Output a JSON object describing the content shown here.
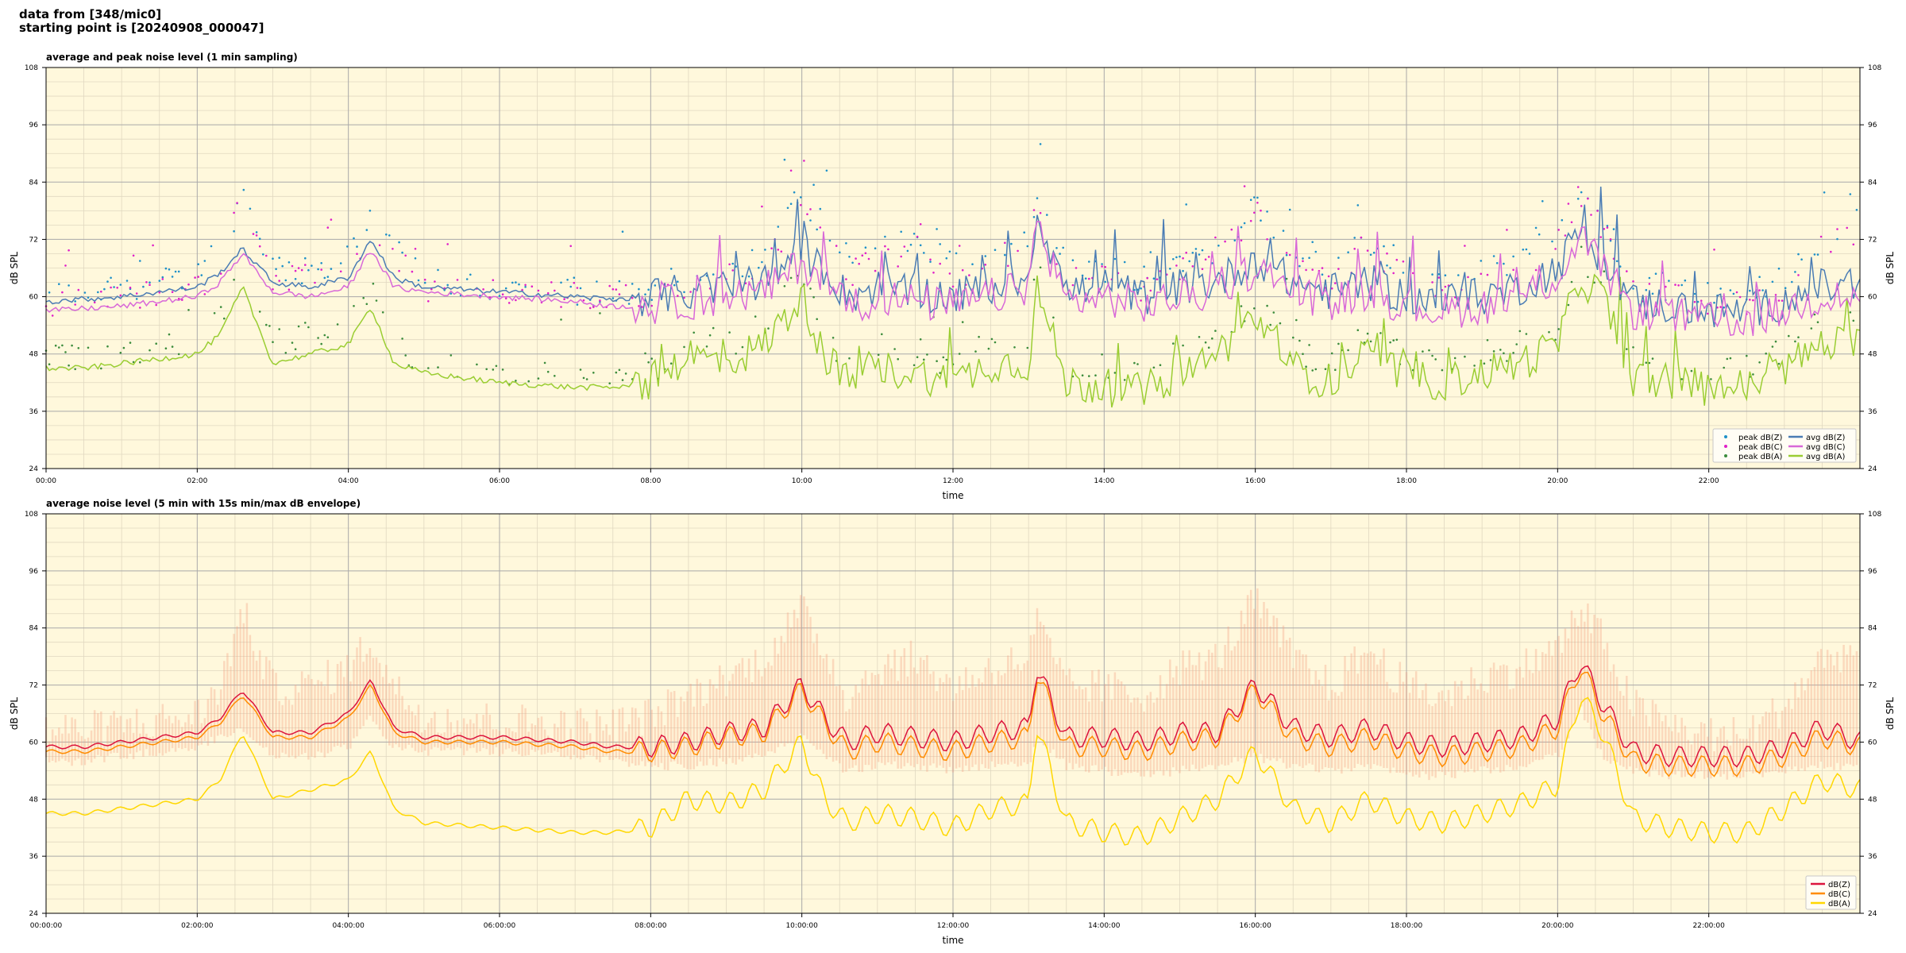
{
  "header": {
    "line1": "data from [348/mic0]",
    "line2": "starting point is [20240908_000047]"
  },
  "colors": {
    "background": "#fff8dc",
    "grid_major": "#a9a9a9",
    "grid_minor": "#e0d8c0",
    "peak_z": "#1e90c8",
    "peak_c": "#e020c8",
    "peak_a": "#3c8c3c",
    "avg_z": "#4a7cb4",
    "avg_c": "#d868d8",
    "avg_a": "#9acd32",
    "db_z": "#dc143c",
    "db_c": "#ff8c00",
    "db_a": "#ffd700",
    "envelope": "#f4a080"
  },
  "chart_data": [
    {
      "type": "line",
      "title": "average and peak noise level (1 min sampling)",
      "xlabel": "time",
      "ylabel": "dB SPL",
      "ylabel_right": "dB SPL",
      "xlim_hours": [
        0,
        24
      ],
      "ylim": [
        24,
        108
      ],
      "yticks": [
        24,
        36,
        48,
        60,
        72,
        84,
        96,
        108
      ],
      "xtick_hours": [
        0,
        2,
        4,
        6,
        8,
        10,
        12,
        14,
        16,
        18,
        20,
        22
      ],
      "xtick_labels": [
        "00:00",
        "02:00",
        "04:00",
        "06:00",
        "08:00",
        "10:00",
        "12:00",
        "14:00",
        "16:00",
        "18:00",
        "20:00",
        "22:00"
      ],
      "grid": true,
      "legend_position": "bottom-right",
      "series": [
        {
          "name": "peak dB(Z)",
          "kind": "scatter",
          "color_key": "peak_z"
        },
        {
          "name": "peak dB(C)",
          "kind": "scatter",
          "color_key": "peak_c"
        },
        {
          "name": "peak dB(A)",
          "kind": "scatter",
          "color_key": "peak_a"
        },
        {
          "name": "avg dB(Z)",
          "kind": "line",
          "color_key": "avg_z"
        },
        {
          "name": "avg dB(C)",
          "kind": "line",
          "color_key": "avg_c"
        },
        {
          "name": "avg dB(A)",
          "kind": "line",
          "color_key": "avg_a"
        }
      ],
      "x_hours": [
        0,
        0.5,
        1,
        1.5,
        2,
        2.3,
        2.6,
        3,
        3.5,
        4,
        4.3,
        4.6,
        5,
        6,
        7,
        7.5,
        8,
        8.5,
        9,
        9.5,
        10,
        10.3,
        10.6,
        11,
        11.5,
        12,
        12.5,
        13,
        13.1,
        13.5,
        14,
        14.5,
        15,
        15.5,
        16,
        16.5,
        17,
        17.5,
        18,
        18.5,
        19,
        19.5,
        20,
        20.3,
        20.6,
        21,
        21.5,
        22,
        22.5,
        23,
        23.5,
        24
      ],
      "avg_z": [
        59,
        59.5,
        60,
        61,
        62,
        65,
        70,
        63,
        62,
        64,
        72,
        64,
        62,
        61,
        60,
        59.5,
        60,
        61,
        62,
        63,
        69,
        66,
        60,
        62,
        61,
        60,
        62,
        64,
        78,
        61,
        62,
        60,
        62,
        63,
        68,
        63,
        61,
        63,
        60,
        59,
        60,
        62,
        66,
        74,
        68,
        59,
        58,
        57,
        57,
        59,
        62,
        62
      ],
      "avg_c": [
        57,
        57.5,
        58,
        59,
        60,
        63,
        69,
        61,
        60,
        62,
        70,
        62,
        61,
        60,
        59,
        58,
        58,
        59,
        60,
        61,
        67,
        64,
        58,
        60,
        59,
        58,
        60,
        62,
        76,
        59,
        60,
        58,
        60,
        61,
        66,
        61,
        59,
        61,
        58,
        57,
        58,
        60,
        64,
        72,
        66,
        57,
        56,
        55,
        55,
        57,
        60,
        60
      ],
      "avg_a": [
        45,
        45,
        46,
        47,
        48,
        52,
        62,
        46,
        48,
        50,
        58,
        46,
        44,
        42,
        41,
        41,
        42,
        48,
        46,
        50,
        60,
        48,
        42,
        45,
        44,
        42,
        46,
        46,
        62,
        42,
        41,
        40,
        44,
        48,
        56,
        45,
        42,
        48,
        43,
        42,
        44,
        46,
        50,
        64,
        60,
        43,
        42,
        41,
        41,
        45,
        50,
        50
      ],
      "peak_z": [
        60,
        61,
        62,
        63,
        64,
        68,
        82,
        66,
        65,
        68,
        76,
        70,
        64,
        62,
        61,
        61,
        62,
        64,
        66,
        68,
        82,
        74,
        66,
        70,
        72,
        66,
        70,
        72,
        82,
        66,
        66,
        64,
        68,
        70,
        80,
        68,
        66,
        72,
        66,
        64,
        66,
        68,
        74,
        84,
        76,
        64,
        62,
        60,
        60,
        64,
        72,
        76
      ],
      "peak_c": [
        58,
        59,
        60,
        61,
        62,
        66,
        80,
        64,
        63,
        66,
        74,
        68,
        62,
        61,
        60,
        60,
        60,
        62,
        64,
        66,
        80,
        72,
        64,
        68,
        70,
        64,
        68,
        70,
        80,
        64,
        64,
        62,
        66,
        68,
        78,
        66,
        64,
        70,
        64,
        62,
        64,
        66,
        72,
        82,
        74,
        62,
        60,
        58,
        58,
        62,
        70,
        74
      ],
      "peak_a": [
        47,
        47,
        48,
        49,
        50,
        55,
        66,
        50,
        52,
        54,
        62,
        50,
        46,
        44,
        43,
        43,
        44,
        52,
        50,
        54,
        64,
        52,
        46,
        50,
        48,
        46,
        50,
        50,
        66,
        46,
        45,
        44,
        48,
        52,
        60,
        49,
        46,
        52,
        47,
        46,
        48,
        50,
        54,
        68,
        64,
        47,
        46,
        45,
        45,
        49,
        56,
        56
      ]
    },
    {
      "type": "line",
      "title": "average noise level (5 min with 15s min/max dB envelope)",
      "xlabel": "time",
      "ylabel": "dB SPL",
      "ylabel_right": "dB SPL",
      "xlim_hours": [
        0,
        24
      ],
      "ylim": [
        24,
        108
      ],
      "yticks": [
        24,
        36,
        48,
        60,
        72,
        84,
        96,
        108
      ],
      "xtick_hours": [
        0,
        2,
        4,
        6,
        8,
        10,
        12,
        14,
        16,
        18,
        20,
        22
      ],
      "xtick_labels": [
        "00:00:00",
        "02:00:00",
        "04:00:00",
        "06:00:00",
        "08:00:00",
        "10:00:00",
        "12:00:00",
        "14:00:00",
        "16:00:00",
        "18:00:00",
        "20:00:00",
        "22:00:00"
      ],
      "grid": true,
      "legend_position": "bottom-right",
      "series": [
        {
          "name": "dB(Z)",
          "kind": "line",
          "color_key": "db_z"
        },
        {
          "name": "dB(C)",
          "kind": "line",
          "color_key": "db_c"
        },
        {
          "name": "dB(A)",
          "kind": "line",
          "color_key": "db_a"
        }
      ],
      "x_hours": [
        0,
        0.5,
        1,
        1.5,
        2,
        2.3,
        2.6,
        3,
        3.5,
        4,
        4.3,
        4.6,
        5,
        6,
        7,
        7.5,
        8,
        8.5,
        9,
        9.5,
        10,
        10.3,
        10.6,
        11,
        11.5,
        12,
        12.5,
        13,
        13.1,
        13.5,
        14,
        14.5,
        15,
        15.5,
        16,
        16.5,
        17,
        17.5,
        18,
        18.5,
        19,
        19.5,
        20,
        20.3,
        20.6,
        21,
        21.5,
        22,
        22.5,
        23,
        23.5,
        24
      ],
      "db_z": [
        59,
        59,
        60,
        61,
        62,
        65,
        71,
        62,
        62,
        66,
        73,
        63,
        61,
        61,
        60,
        59,
        59,
        60,
        62,
        63,
        72,
        65,
        60,
        62,
        61,
        60,
        62,
        63,
        76,
        61,
        61,
        60,
        62,
        62,
        72,
        63,
        61,
        63,
        60,
        59,
        60,
        61,
        65,
        77,
        68,
        58,
        57,
        57,
        57,
        59,
        63,
        60
      ],
      "db_c": [
        58,
        58,
        59,
        60,
        61,
        64,
        70,
        61,
        61,
        65,
        72,
        62,
        60,
        60,
        59,
        58,
        58,
        59,
        61,
        62,
        71,
        64,
        58,
        60,
        59,
        58,
        60,
        61,
        75,
        59,
        59,
        58,
        60,
        61,
        71,
        61,
        59,
        61,
        58,
        57,
        58,
        59,
        63,
        76,
        66,
        56,
        55,
        55,
        55,
        57,
        61,
        59
      ],
      "db_a": [
        45,
        45,
        46,
        47,
        48,
        52,
        62,
        48,
        50,
        52,
        58,
        46,
        43,
        42,
        41,
        41,
        42,
        48,
        47,
        50,
        60,
        48,
        43,
        45,
        44,
        42,
        46,
        47,
        64,
        43,
        41,
        40,
        44,
        48,
        58,
        46,
        43,
        48,
        44,
        43,
        45,
        47,
        51,
        70,
        62,
        44,
        42,
        41,
        41,
        46,
        52,
        50
      ],
      "env_max": [
        61,
        61,
        62,
        63,
        64,
        70,
        86,
        70,
        70,
        74,
        80,
        70,
        64,
        63,
        62,
        62,
        64,
        68,
        72,
        76,
        86,
        78,
        68,
        74,
        76,
        70,
        74,
        76,
        84,
        70,
        70,
        68,
        74,
        76,
        88,
        76,
        70,
        78,
        70,
        68,
        72,
        74,
        78,
        86,
        80,
        66,
        62,
        60,
        60,
        66,
        76,
        78
      ],
      "env_min": [
        57,
        57,
        58,
        59,
        60,
        62,
        64,
        58,
        58,
        60,
        66,
        60,
        59,
        59,
        58,
        57,
        56,
        56,
        57,
        58,
        62,
        58,
        55,
        56,
        56,
        55,
        56,
        56,
        62,
        56,
        55,
        54,
        55,
        56,
        58,
        56,
        55,
        56,
        54,
        54,
        55,
        56,
        58,
        68,
        58,
        55,
        54,
        54,
        54,
        55,
        56,
        56
      ]
    }
  ]
}
